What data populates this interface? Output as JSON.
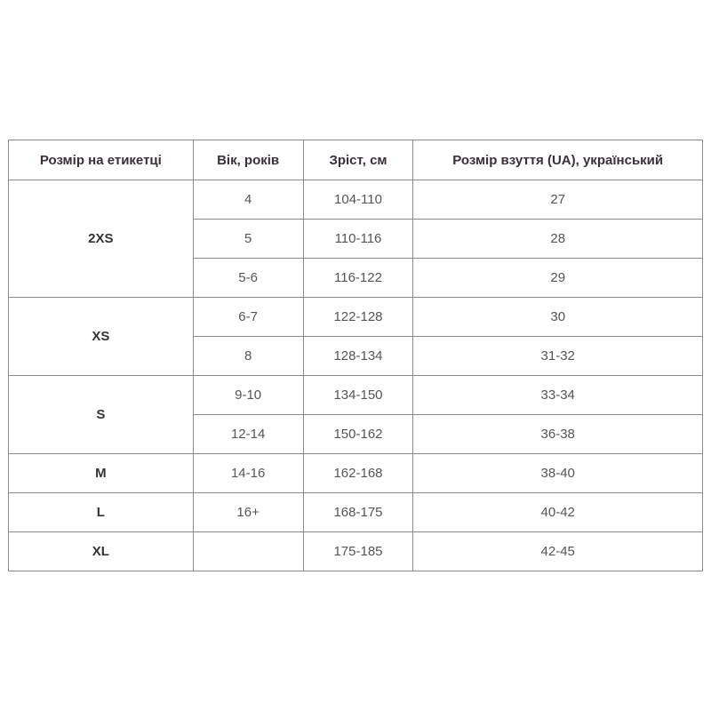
{
  "headers": [
    "Розмір на етикетці",
    "Вік, років",
    "Зріст, см",
    "Розмір взуття (UA), український"
  ],
  "groups": [
    {
      "size": "2XS",
      "rows": [
        [
          "4",
          "104-110",
          "27"
        ],
        [
          "5",
          "110-116",
          "28"
        ],
        [
          "5-6",
          "116-122",
          "29"
        ]
      ]
    },
    {
      "size": "XS",
      "rows": [
        [
          "6-7",
          "122-128",
          "30"
        ],
        [
          "8",
          "128-134",
          "31-32"
        ]
      ]
    },
    {
      "size": "S",
      "rows": [
        [
          "9-10",
          "134-150",
          "33-34"
        ],
        [
          "12-14",
          "150-162",
          "36-38"
        ]
      ]
    },
    {
      "size": "M",
      "rows": [
        [
          "14-16",
          "162-168",
          "38-40"
        ]
      ]
    },
    {
      "size": "L",
      "rows": [
        [
          "16+",
          "168-175",
          "40-42"
        ]
      ]
    },
    {
      "size": "XL",
      "rows": [
        [
          "",
          "175-185",
          "42-45"
        ]
      ]
    }
  ]
}
